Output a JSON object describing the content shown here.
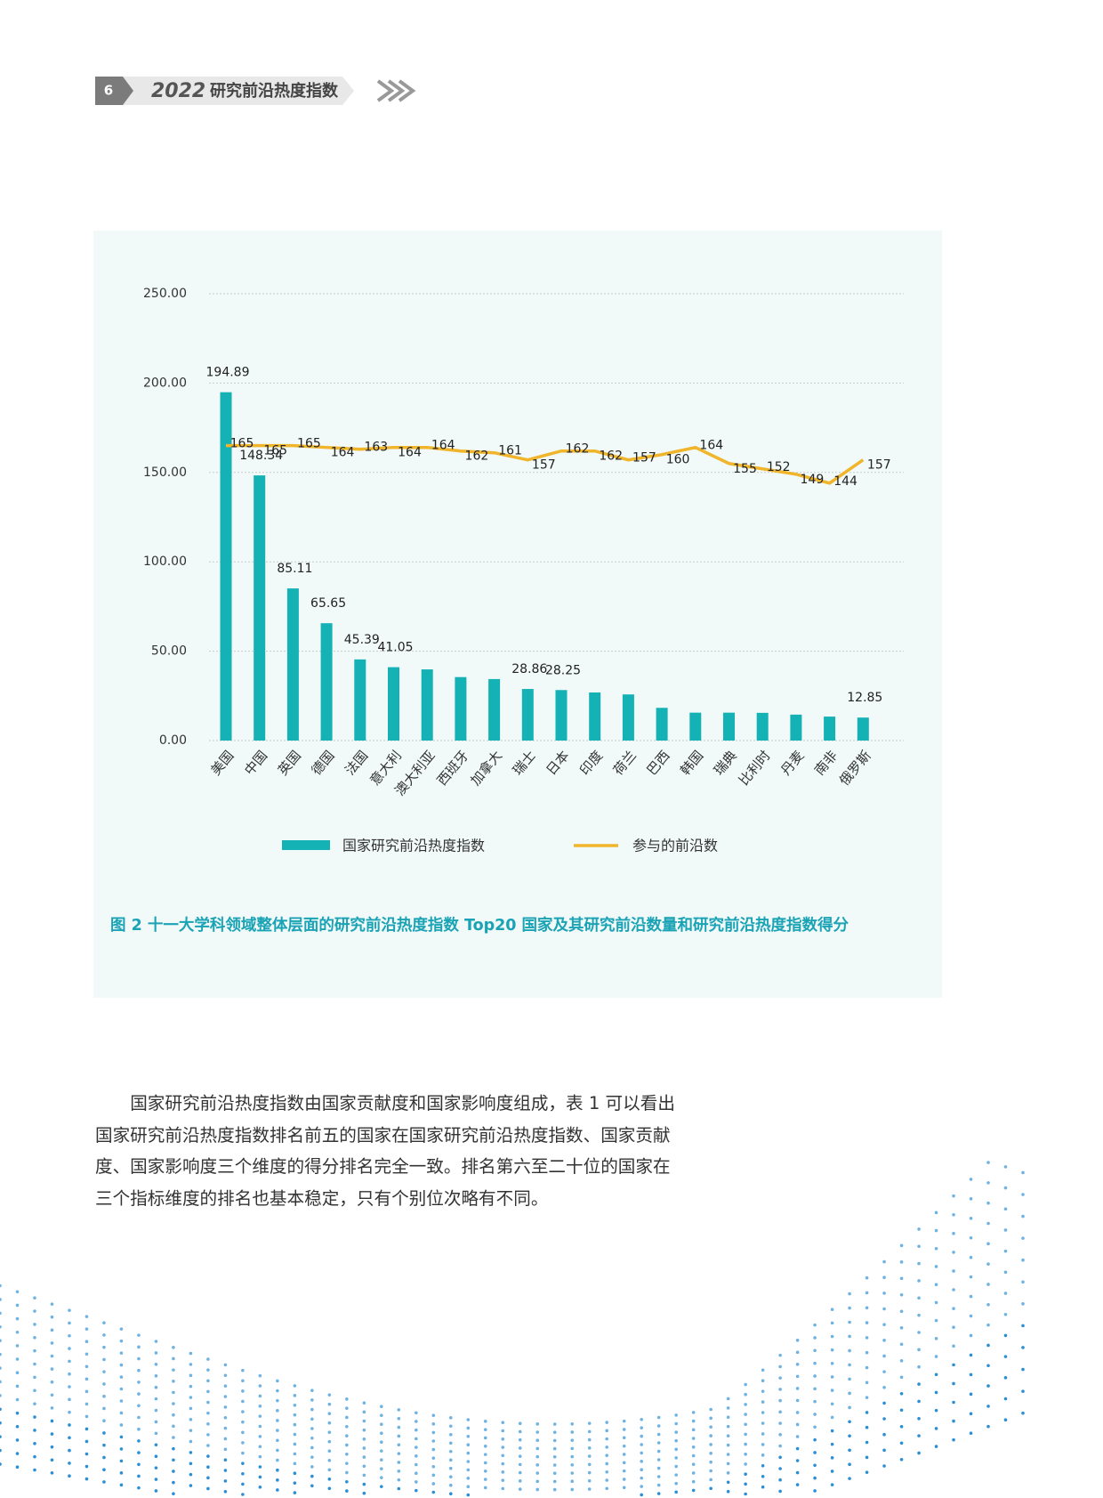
{
  "header": {
    "page_number": "6",
    "year": "2022",
    "title": "研究前沿热度指数"
  },
  "chart_data": {
    "type": "bar",
    "categories": [
      "美国",
      "中国",
      "英国",
      "德国",
      "法国",
      "意大利",
      "澳大利亚",
      "西班牙",
      "加拿大",
      "瑞士",
      "日本",
      "印度",
      "荷兰",
      "巴西",
      "韩国",
      "瑞典",
      "比利时",
      "丹麦",
      "南非",
      "俄罗斯"
    ],
    "series": [
      {
        "name": "国家研究前沿热度指数",
        "type": "bar",
        "color": "#14b1b5",
        "values": [
          194.89,
          148.34,
          85.11,
          65.65,
          45.39,
          41.05,
          39.8,
          35.5,
          34.4,
          28.86,
          28.25,
          26.9,
          25.8,
          18.3,
          15.6,
          15.6,
          15.5,
          14.5,
          13.4,
          12.85
        ],
        "value_labels": [
          "194.89",
          "148.34",
          "85.11",
          "65.65",
          "45.39",
          "41.05",
          null,
          null,
          null,
          "28.86",
          "28.25",
          null,
          null,
          null,
          null,
          null,
          null,
          null,
          null,
          "12.85"
        ]
      },
      {
        "name": "参与的前沿数",
        "type": "line",
        "color": "#f0b52a",
        "values": [
          165,
          165,
          165,
          164,
          163,
          164,
          164,
          162,
          161,
          157,
          162,
          162,
          157,
          160,
          164,
          155,
          152,
          149,
          144,
          157
        ]
      }
    ],
    "ylim": [
      0,
      250
    ],
    "yticks": [
      {
        "value": 0,
        "label": "0.00"
      },
      {
        "value": 50,
        "label": "50.00"
      },
      {
        "value": 100,
        "label": "100.00"
      },
      {
        "value": 150,
        "label": "150.00"
      },
      {
        "value": 200,
        "label": "200.00"
      },
      {
        "value": 250,
        "label": "250.00"
      }
    ],
    "grid": true,
    "caption": "图 2  十一大学科领域整体层面的研究前沿热度指数 Top20 国家及其研究前沿数量和研究前沿热度指数得分"
  },
  "paragraph": "国家研究前沿热度指数由国家贡献度和国家影响度组成，表 1 可以看出国家研究前沿热度指数排名前五的国家在国家研究前沿热度指数、国家贡献度、国家影响度三个维度的得分排名完全一致。排名第六至二十位的国家在三个指标维度的排名也基本稳定，只有个别位次略有不同。"
}
